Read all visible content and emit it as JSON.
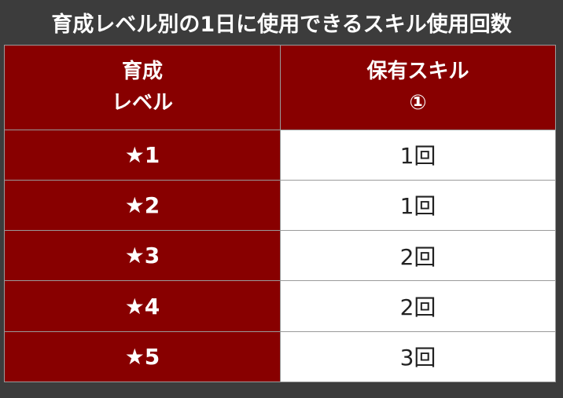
{
  "title": "育成レベル別の1日に使用できるスキル使用回数",
  "table": {
    "header": [
      [
        "育成",
        "レベル"
      ],
      [
        "保有スキル",
        "①"
      ]
    ],
    "rows": [
      [
        "★1",
        "1回"
      ],
      [
        "★2",
        "1回"
      ],
      [
        "★3",
        "2回"
      ],
      [
        "★4",
        "2回"
      ],
      [
        "★5",
        "3回"
      ]
    ]
  }
}
